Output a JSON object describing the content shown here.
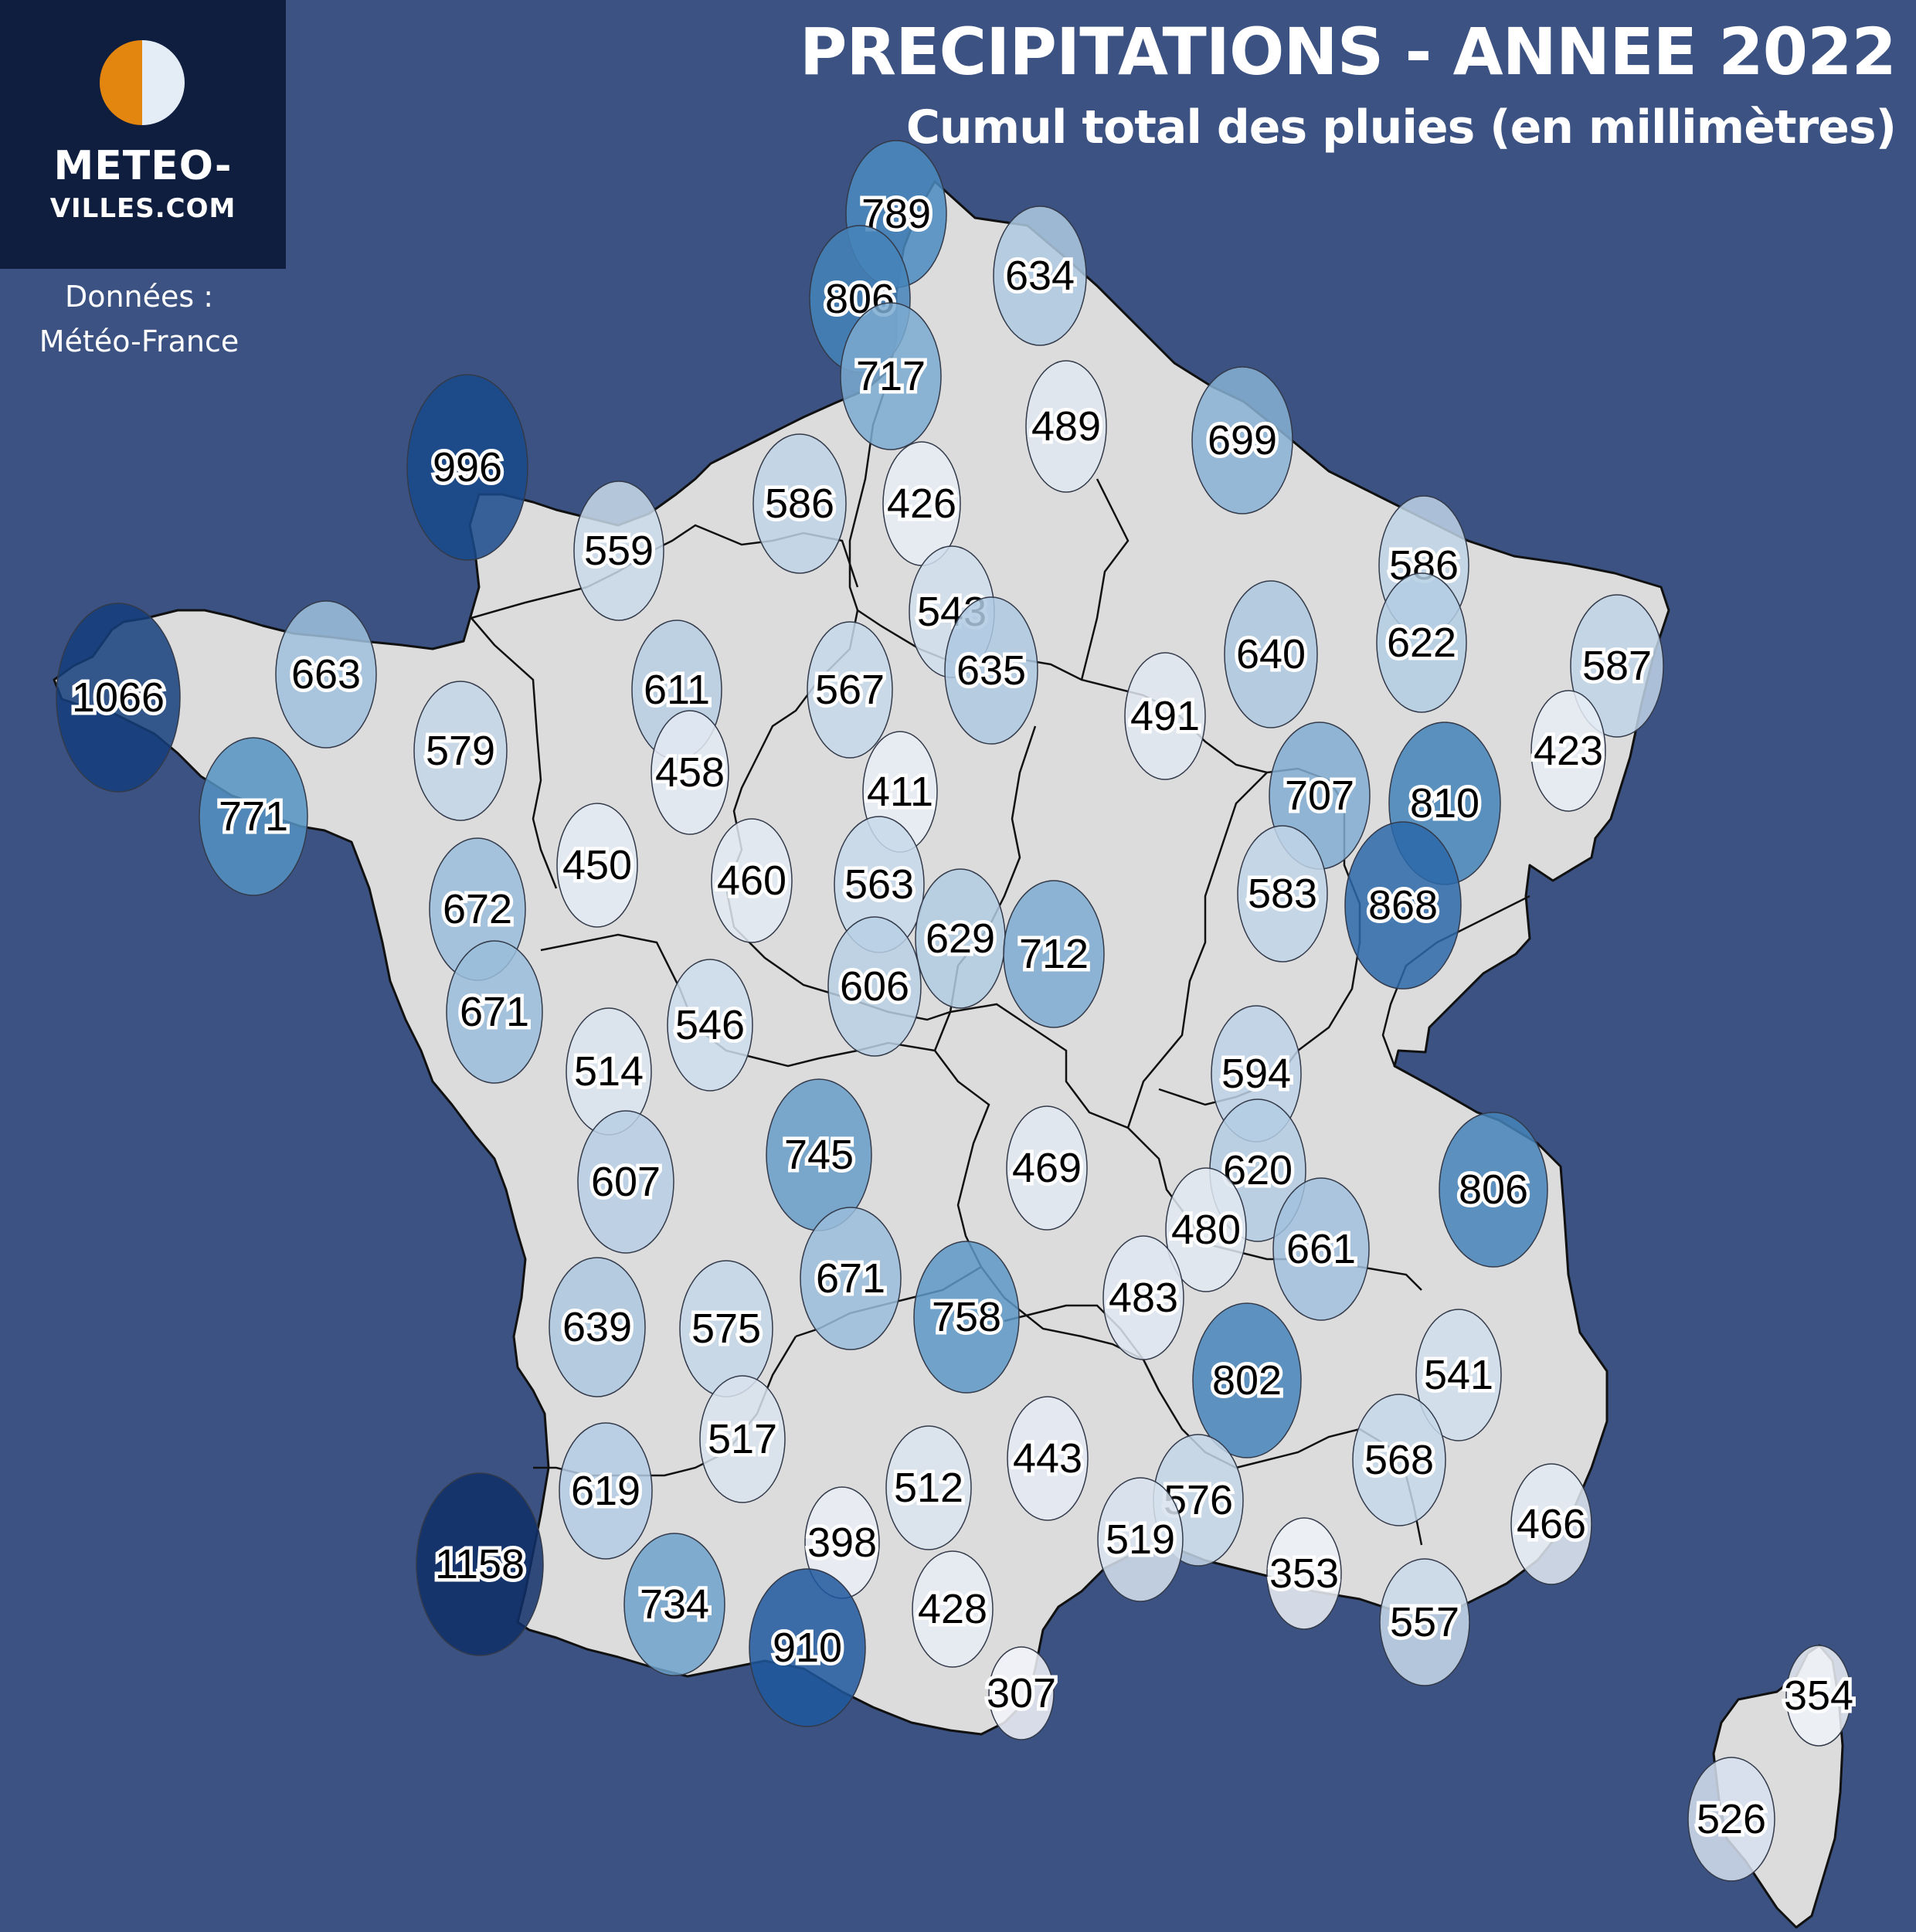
{
  "title": "PRECIPITATIONS - ANNEE 2022",
  "subtitle": "Cumul total des pluies (en millimètres)",
  "source": {
    "label": "Données :",
    "name": "Météo-France"
  },
  "logo": {
    "line1": "METEO-",
    "line2": "VILLES.COM",
    "icon": "half-sun-half-moon-icon"
  },
  "colors": {
    "background": "#3b5282",
    "land": "#dcdcdc",
    "border": "#111111",
    "logo_panel": "#0f1e3f",
    "scale_low": "#f4f6fa",
    "scale_high": "#0f2d66"
  },
  "chart_data": {
    "type": "map",
    "unit": "mm",
    "stations": [
      {
        "id": "s01",
        "value": 789
      },
      {
        "id": "s02",
        "value": 806
      },
      {
        "id": "s03",
        "value": 634
      },
      {
        "id": "s04",
        "value": 717
      },
      {
        "id": "s05",
        "value": 996
      },
      {
        "id": "s06",
        "value": 489
      },
      {
        "id": "s07",
        "value": 699
      },
      {
        "id": "s08",
        "value": 586
      },
      {
        "id": "s09",
        "value": 426
      },
      {
        "id": "s10",
        "value": 559
      },
      {
        "id": "s11",
        "value": 586
      },
      {
        "id": "s12",
        "value": 543
      },
      {
        "id": "s13",
        "value": 622
      },
      {
        "id": "s14",
        "value": 1066
      },
      {
        "id": "s15",
        "value": 663
      },
      {
        "id": "s16",
        "value": 611
      },
      {
        "id": "s17",
        "value": 567
      },
      {
        "id": "s18",
        "value": 635
      },
      {
        "id": "s19",
        "value": 640
      },
      {
        "id": "s20",
        "value": 587
      },
      {
        "id": "s21",
        "value": 579
      },
      {
        "id": "s22",
        "value": 491
      },
      {
        "id": "s23",
        "value": 458
      },
      {
        "id": "s24",
        "value": 423
      },
      {
        "id": "s25",
        "value": 411
      },
      {
        "id": "s26",
        "value": 707
      },
      {
        "id": "s27",
        "value": 810
      },
      {
        "id": "s28",
        "value": 771
      },
      {
        "id": "s29",
        "value": 450
      },
      {
        "id": "s30",
        "value": 460
      },
      {
        "id": "s31",
        "value": 563
      },
      {
        "id": "s32",
        "value": 583
      },
      {
        "id": "s33",
        "value": 672
      },
      {
        "id": "s34",
        "value": 629
      },
      {
        "id": "s35",
        "value": 868
      },
      {
        "id": "s36",
        "value": 712
      },
      {
        "id": "s37",
        "value": 606
      },
      {
        "id": "s38",
        "value": 671
      },
      {
        "id": "s39",
        "value": 546
      },
      {
        "id": "s40",
        "value": 514
      },
      {
        "id": "s41",
        "value": 594
      },
      {
        "id": "s42",
        "value": 745
      },
      {
        "id": "s43",
        "value": 469
      },
      {
        "id": "s44",
        "value": 620
      },
      {
        "id": "s45",
        "value": 806
      },
      {
        "id": "s46",
        "value": 607
      },
      {
        "id": "s47",
        "value": 480
      },
      {
        "id": "s48",
        "value": 661
      },
      {
        "id": "s49",
        "value": 671
      },
      {
        "id": "s50",
        "value": 483
      },
      {
        "id": "s51",
        "value": 758
      },
      {
        "id": "s52",
        "value": 639
      },
      {
        "id": "s53",
        "value": 575
      },
      {
        "id": "s54",
        "value": 802
      },
      {
        "id": "s55",
        "value": 541
      },
      {
        "id": "s56",
        "value": 517
      },
      {
        "id": "s57",
        "value": 443
      },
      {
        "id": "s58",
        "value": 568
      },
      {
        "id": "s59",
        "value": 512
      },
      {
        "id": "s60",
        "value": 619
      },
      {
        "id": "s61",
        "value": 576
      },
      {
        "id": "s62",
        "value": 466
      },
      {
        "id": "s63",
        "value": 398
      },
      {
        "id": "s64",
        "value": 519
      },
      {
        "id": "s65",
        "value": 1158
      },
      {
        "id": "s66",
        "value": 353
      },
      {
        "id": "s67",
        "value": 734
      },
      {
        "id": "s68",
        "value": 428
      },
      {
        "id": "s69",
        "value": 557
      },
      {
        "id": "s70",
        "value": 910
      },
      {
        "id": "s71",
        "value": 307
      },
      {
        "id": "s72",
        "value": 354
      },
      {
        "id": "s73",
        "value": 526
      }
    ]
  }
}
